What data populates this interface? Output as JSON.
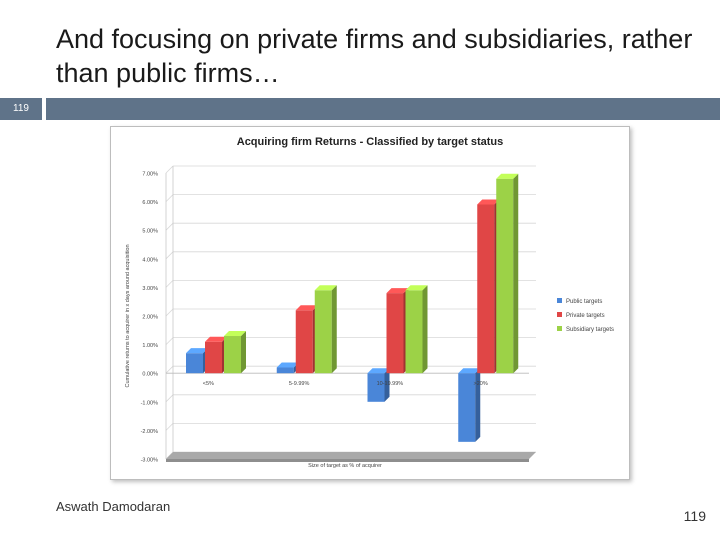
{
  "slide": {
    "title": "And focusing on private firms and subsidiaries, rather than public firms…",
    "number_box": "119",
    "author": "Aswath Damodaran",
    "page_number": "119"
  },
  "colors": {
    "accent_bar": "#5f7389",
    "public": "#4a86d8",
    "private": "#e04646",
    "subsidiary": "#9cd247"
  },
  "chart_data": {
    "type": "bar",
    "title": "Acquiring firm Returns - Classified by target status",
    "xlabel": "Size of target as % of acquirer",
    "ylabel": "Cumulative returns to acquirer in x days around acquisition",
    "categories": [
      "<5%",
      "5-9.99%",
      "10-19.99%",
      ">20%"
    ],
    "series": [
      {
        "name": "Public targets",
        "values": [
          0.7,
          0.2,
          -1.0,
          -2.4
        ]
      },
      {
        "name": "Private targets",
        "values": [
          1.1,
          2.2,
          2.8,
          5.9
        ]
      },
      {
        "name": "Subsidiary targets",
        "values": [
          1.3,
          2.9,
          2.9,
          6.8
        ]
      }
    ],
    "yticks": [
      "7.00%",
      "6.00%",
      "5.00%",
      "4.00%",
      "3.00%",
      "2.00%",
      "1.00%",
      "0.00%",
      "-1.00%",
      "-2.00%",
      "-3.00%"
    ],
    "ylim": [
      -3,
      7
    ],
    "legend_position": "right"
  }
}
